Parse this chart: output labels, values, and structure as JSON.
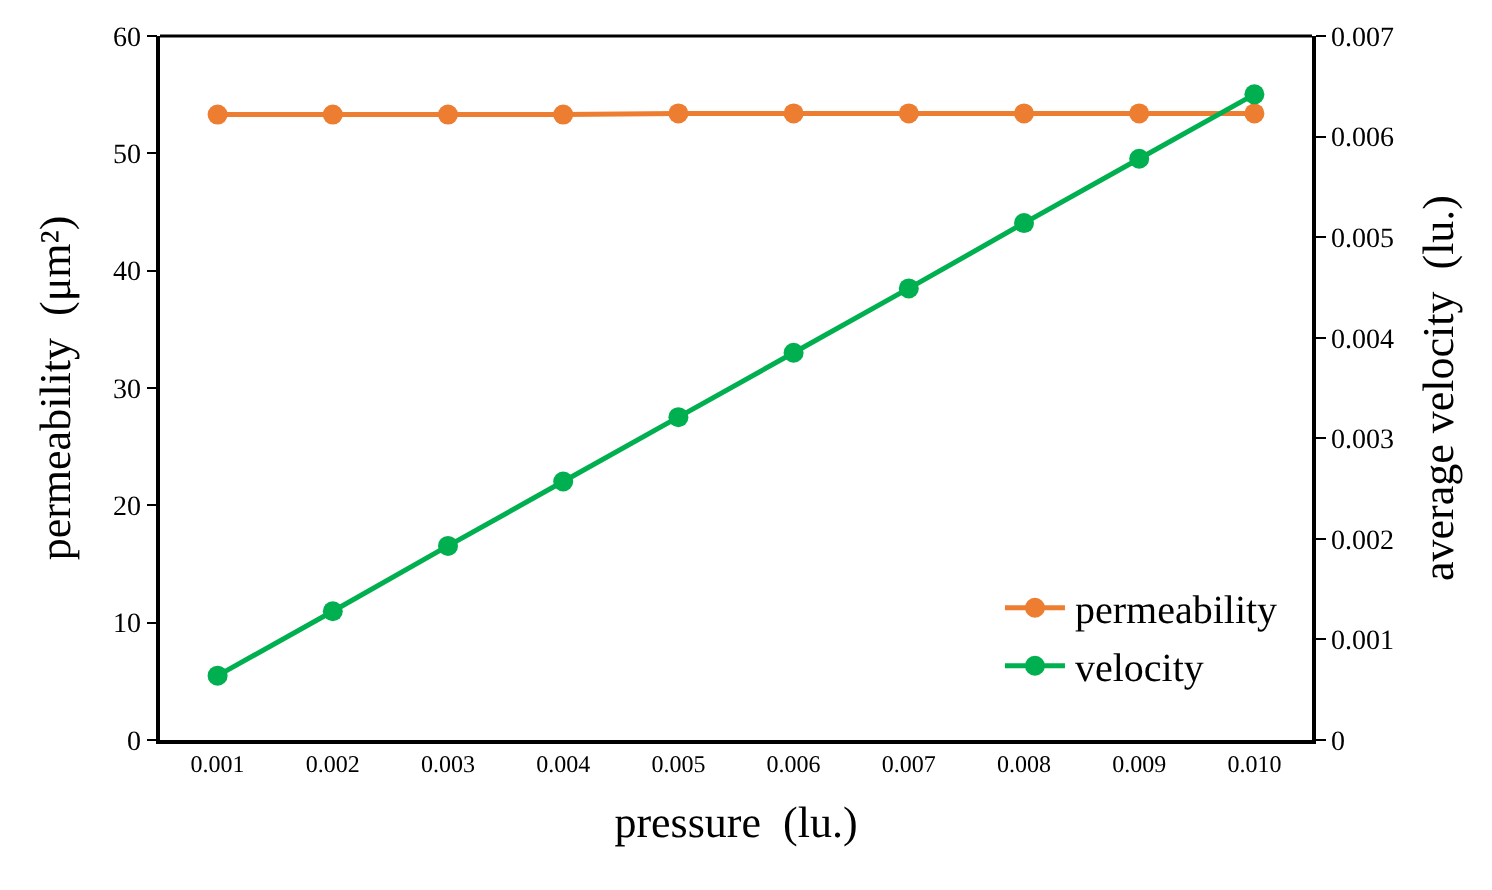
{
  "chart_data": {
    "type": "line",
    "xlabel": "pressure  (lu.)",
    "ylabel": "permeability  (μm²)",
    "y2label": "average velocity  (lu.)",
    "categories": [
      "0.001",
      "0.002",
      "0.003",
      "0.004",
      "0.005",
      "0.006",
      "0.007",
      "0.008",
      "0.009",
      "0.010"
    ],
    "series": [
      {
        "name": "permeability",
        "color": "#ed7d31",
        "values": [
          53.3,
          53.3,
          53.3,
          53.3,
          53.4,
          53.4,
          53.4,
          53.4,
          53.4,
          53.4
        ]
      },
      {
        "name": "velocity",
        "color": "#00b050",
        "axis": "y2",
        "values": [
          0.00064,
          0.00128,
          0.00193,
          0.00257,
          0.00321,
          0.00385,
          0.00449,
          0.00514,
          0.00578,
          0.00642
        ]
      }
    ],
    "ylim": [
      0,
      60
    ],
    "yticks": [
      0,
      10,
      20,
      30,
      40,
      50,
      60
    ],
    "y2lim": [
      0,
      0.007
    ],
    "y2ticks": [
      0,
      0.001,
      0.002,
      0.003,
      0.004,
      0.005,
      0.006,
      0.007
    ],
    "marker": "circle",
    "line_style": "solid",
    "legend": "bottom right"
  }
}
